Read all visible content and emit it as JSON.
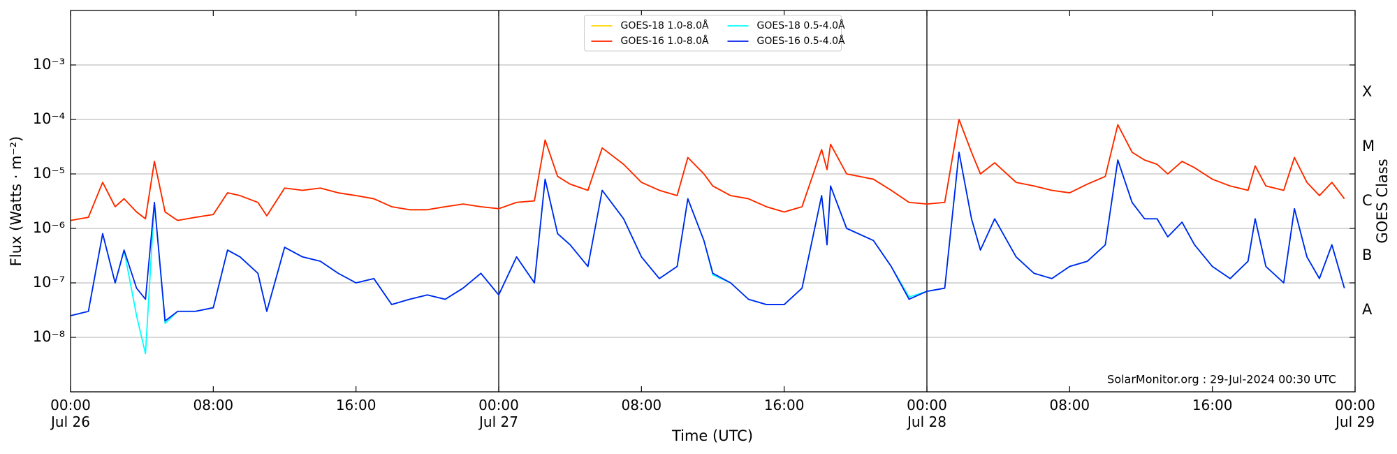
{
  "chart_data": {
    "type": "line",
    "ylabel": "Flux (Watts · m⁻²)",
    "xlabel": "Time (UTC)",
    "y2label": "GOES Class",
    "annotation": "SolarMonitor.org : 29-Jul-2024 00:30 UTC",
    "yscale": "log",
    "grid": true,
    "legend": "upper center",
    "xlim": [
      0,
      72
    ],
    "ylim": [
      1e-09,
      0.01
    ],
    "xticks": [
      {
        "value": 0,
        "label": "00:00\nJul 26"
      },
      {
        "value": 8,
        "label": "08:00"
      },
      {
        "value": 16,
        "label": "16:00"
      },
      {
        "value": 24,
        "label": "00:00\nJul 27"
      },
      {
        "value": 32,
        "label": "08:00"
      },
      {
        "value": 40,
        "label": "16:00"
      },
      {
        "value": 48,
        "label": "00:00\nJul 28"
      },
      {
        "value": 56,
        "label": "08:00"
      },
      {
        "value": 64,
        "label": "16:00"
      },
      {
        "value": 72,
        "label": "00:00\nJul 29"
      }
    ],
    "yticks": [
      {
        "value": 1e-08,
        "label": "10⁻⁸"
      },
      {
        "value": 1e-07,
        "label": "10⁻⁷"
      },
      {
        "value": 1e-06,
        "label": "10⁻⁶"
      },
      {
        "value": 1e-05,
        "label": "10⁻⁵"
      },
      {
        "value": 0.0001,
        "label": "10⁻⁴"
      },
      {
        "value": 0.001,
        "label": "10⁻³"
      }
    ],
    "y2ticks": [
      {
        "value": 3.16e-08,
        "label": "A"
      },
      {
        "value": 3.16e-07,
        "label": "B"
      },
      {
        "value": 3.16e-06,
        "label": "C"
      },
      {
        "value": 3.16e-05,
        "label": "M"
      },
      {
        "value": 0.000316,
        "label": "X"
      }
    ],
    "vlines": [
      24,
      48
    ],
    "x": [
      0,
      1,
      1.8,
      2.5,
      3,
      3.7,
      4.2,
      4.7,
      5.3,
      6,
      7,
      8,
      8.8,
      9.5,
      10.5,
      11,
      12,
      13,
      14,
      15,
      16,
      17,
      18,
      19,
      20,
      21,
      22,
      23,
      24,
      25,
      26,
      26.6,
      27.3,
      28,
      29,
      29.8,
      31,
      32,
      33,
      34,
      34.6,
      35.5,
      36,
      37,
      38,
      39,
      40,
      41,
      42.1,
      42.4,
      42.6,
      43.5,
      45,
      46,
      47,
      48,
      49,
      49.8,
      50.5,
      51,
      51.8,
      53,
      54,
      55,
      56,
      57,
      58,
      58.7,
      59.5,
      60.2,
      60.9,
      61.5,
      62.3,
      63,
      64,
      65,
      66,
      66.4,
      67,
      68,
      68.6,
      69.3,
      70,
      70.7,
      71.4
    ],
    "series": [
      {
        "name": "GOES-18 1.0-8.0Å",
        "color": "#ffd700",
        "values": [
          1.4e-06,
          1.6e-06,
          7e-06,
          2.5e-06,
          3.5e-06,
          2e-06,
          1.5e-06,
          1.7e-05,
          2e-06,
          1.4e-06,
          1.6e-06,
          1.8e-06,
          4.5e-06,
          4e-06,
          3e-06,
          1.7e-06,
          5.5e-06,
          5e-06,
          5.5e-06,
          4.5e-06,
          4e-06,
          3.5e-06,
          2.5e-06,
          2.2e-06,
          2.2e-06,
          2.5e-06,
          2.8e-06,
          2.5e-06,
          2.3e-06,
          3e-06,
          3.2e-06,
          4.2e-05,
          9e-06,
          6.5e-06,
          5e-06,
          3e-05,
          1.5e-05,
          7e-06,
          5e-06,
          4e-06,
          2e-05,
          1e-05,
          6e-06,
          4e-06,
          3.5e-06,
          2.5e-06,
          2e-06,
          2.5e-06,
          2.8e-05,
          1.2e-05,
          3.5e-05,
          1e-05,
          8e-06,
          5e-06,
          3e-06,
          2.8e-06,
          3e-06,
          0.0001,
          2.5e-05,
          1e-05,
          1.6e-05,
          7e-06,
          6e-06,
          5e-06,
          4.5e-06,
          6.5e-06,
          9e-06,
          8e-05,
          2.5e-05,
          1.8e-05,
          1.5e-05,
          1e-05,
          1.7e-05,
          1.3e-05,
          8e-06,
          6e-06,
          5e-06,
          1.4e-05,
          6e-06,
          5e-06,
          2e-05,
          7e-06,
          4e-06,
          7e-06,
          3.5e-06
        ]
      },
      {
        "name": "GOES-16 1.0-8.0Å",
        "color": "#ff2200",
        "values": [
          1.4e-06,
          1.6e-06,
          7e-06,
          2.5e-06,
          3.5e-06,
          2e-06,
          1.5e-06,
          1.7e-05,
          2e-06,
          1.4e-06,
          1.6e-06,
          1.8e-06,
          4.5e-06,
          4e-06,
          3e-06,
          1.7e-06,
          5.5e-06,
          5e-06,
          5.5e-06,
          4.5e-06,
          4e-06,
          3.5e-06,
          2.5e-06,
          2.2e-06,
          2.2e-06,
          2.5e-06,
          2.8e-06,
          2.5e-06,
          2.3e-06,
          3e-06,
          3.2e-06,
          4.2e-05,
          9e-06,
          6.5e-06,
          5e-06,
          3e-05,
          1.5e-05,
          7e-06,
          5e-06,
          4e-06,
          2e-05,
          1e-05,
          6e-06,
          4e-06,
          3.5e-06,
          2.5e-06,
          2e-06,
          2.5e-06,
          2.8e-05,
          1.2e-05,
          3.5e-05,
          1e-05,
          8e-06,
          5e-06,
          3e-06,
          2.8e-06,
          3e-06,
          0.0001,
          2.5e-05,
          1e-05,
          1.6e-05,
          7e-06,
          6e-06,
          5e-06,
          4.5e-06,
          6.5e-06,
          9e-06,
          8e-05,
          2.5e-05,
          1.8e-05,
          1.5e-05,
          1e-05,
          1.7e-05,
          1.3e-05,
          8e-06,
          6e-06,
          5e-06,
          1.4e-05,
          6e-06,
          5e-06,
          2e-05,
          7e-06,
          4e-06,
          7e-06,
          3.5e-06
        ]
      },
      {
        "name": "GOES-18 0.5-4.0Å",
        "color": "#00ffff",
        "values": [
          2.5e-08,
          3e-08,
          8e-07,
          1e-07,
          4e-07,
          2.5e-08,
          5e-09,
          3e-06,
          1.8e-08,
          3e-08,
          3e-08,
          3.5e-08,
          4e-07,
          3e-07,
          1.5e-07,
          3e-08,
          4.5e-07,
          3e-07,
          2.5e-07,
          1.5e-07,
          1e-07,
          1.2e-07,
          4e-08,
          5e-08,
          6e-08,
          5e-08,
          8e-08,
          1.5e-07,
          6e-08,
          3e-07,
          1e-07,
          8e-06,
          8e-07,
          5e-07,
          2e-07,
          5e-06,
          1.5e-06,
          3e-07,
          1.2e-07,
          2e-07,
          3.5e-06,
          6e-07,
          1.4e-07,
          1e-07,
          5e-08,
          4e-08,
          4e-08,
          8e-08,
          4e-06,
          5e-07,
          6e-06,
          1e-06,
          6e-07,
          2e-07,
          5.5e-08,
          7e-08,
          8e-08,
          2.5e-05,
          1.5e-06,
          4e-07,
          1.5e-06,
          3e-07,
          1.5e-07,
          1.2e-07,
          2e-07,
          2.5e-07,
          5e-07,
          1.8e-05,
          3e-06,
          1.5e-06,
          1.5e-06,
          7e-07,
          1.3e-06,
          5e-07,
          2e-07,
          1.2e-07,
          2.5e-07,
          1.5e-06,
          2e-07,
          1e-07,
          2.3e-06,
          3e-07,
          1.2e-07,
          5e-07,
          8e-08
        ]
      },
      {
        "name": "GOES-16 0.5-4.0Å",
        "color": "#0022ee",
        "values": [
          2.5e-08,
          3e-08,
          8e-07,
          1e-07,
          4e-07,
          8e-08,
          5e-08,
          3e-06,
          2e-08,
          3e-08,
          3e-08,
          3.5e-08,
          4e-07,
          3e-07,
          1.5e-07,
          3e-08,
          4.5e-07,
          3e-07,
          2.5e-07,
          1.5e-07,
          1e-07,
          1.2e-07,
          4e-08,
          5e-08,
          6e-08,
          5e-08,
          8e-08,
          1.5e-07,
          6e-08,
          3e-07,
          1e-07,
          8e-06,
          8e-07,
          5e-07,
          2e-07,
          5e-06,
          1.5e-06,
          3e-07,
          1.2e-07,
          2e-07,
          3.5e-06,
          6e-07,
          1.5e-07,
          1e-07,
          5e-08,
          4e-08,
          4e-08,
          8e-08,
          4e-06,
          5e-07,
          6e-06,
          1e-06,
          6e-07,
          2e-07,
          5e-08,
          7e-08,
          8e-08,
          2.5e-05,
          1.5e-06,
          4e-07,
          1.5e-06,
          3e-07,
          1.5e-07,
          1.2e-07,
          2e-07,
          2.5e-07,
          5e-07,
          1.8e-05,
          3e-06,
          1.5e-06,
          1.5e-06,
          7e-07,
          1.3e-06,
          5e-07,
          2e-07,
          1.2e-07,
          2.5e-07,
          1.5e-06,
          2e-07,
          1e-07,
          2.3e-06,
          3e-07,
          1.2e-07,
          5e-07,
          8e-08
        ]
      }
    ]
  }
}
